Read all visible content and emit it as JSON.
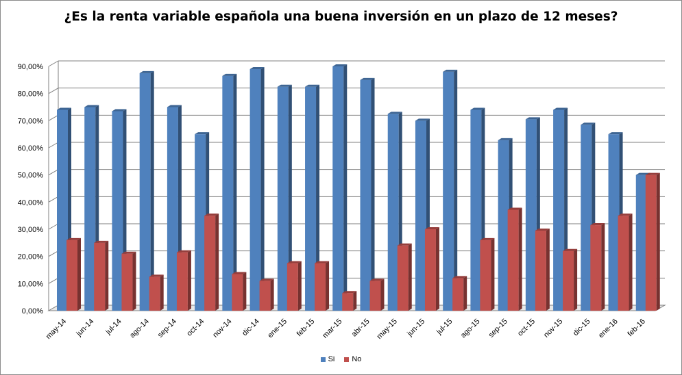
{
  "chart_data": {
    "type": "bar",
    "title": "¿Es la renta variable española una buena inversión en un plazo de 12 meses?",
    "xlabel": "",
    "ylabel": "",
    "ylim": [
      0,
      90
    ],
    "yticks": [
      "0,00%",
      "10,00%",
      "20,00%",
      "30,00%",
      "40,00%",
      "50,00%",
      "60,00%",
      "70,00%",
      "80,00%",
      "90,00%"
    ],
    "categories": [
      "may-14",
      "jun-14",
      "jul-14",
      "ago-14",
      "sep-14",
      "oct-14",
      "nov-14",
      "dic-14",
      "ene-15",
      "feb-15",
      "mar-15",
      "abr-15",
      "may-15",
      "jun-15",
      "jul-15",
      "ago-15",
      "sep-15",
      "oct-15",
      "nov-15",
      "dic-15",
      "ene-16",
      "feb-16"
    ],
    "series": [
      {
        "name": "Si",
        "color": "#4f81bd",
        "values": [
          74.0,
          75.0,
          73.5,
          87.5,
          75.0,
          65.0,
          86.5,
          89.0,
          82.5,
          82.5,
          90.0,
          85.0,
          72.5,
          70.0,
          88.0,
          74.0,
          62.8,
          70.5,
          74.0,
          68.5,
          65.0,
          50.0
        ]
      },
      {
        "name": "No",
        "color": "#c0504d",
        "values": [
          26.0,
          25.0,
          21.0,
          12.5,
          21.5,
          35.0,
          13.5,
          11.0,
          17.5,
          17.5,
          6.5,
          11.0,
          24.0,
          30.0,
          12.0,
          26.0,
          37.2,
          29.5,
          22.0,
          31.5,
          35.0,
          50.0
        ]
      }
    ],
    "legend_position": "bottom-center",
    "grid": true
  }
}
